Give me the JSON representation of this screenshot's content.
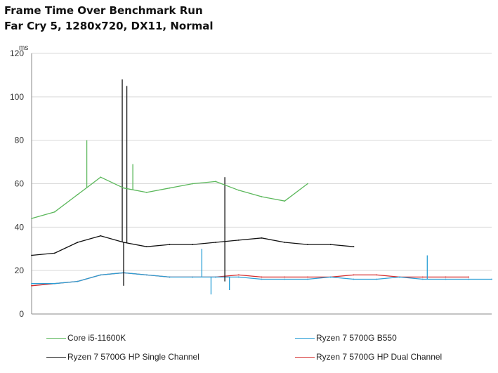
{
  "chart_data": {
    "type": "line",
    "title": "Frame Time Over Benchmark Run",
    "subtitle": "Far Cry 5, 1280x720, DX11, Normal",
    "xlabel": "",
    "ylabel": "ms",
    "ylim": [
      0,
      120
    ],
    "yticks": [
      0,
      20,
      40,
      60,
      80,
      100,
      120
    ],
    "grid": true,
    "legend_position": "bottom",
    "x": [
      0.0,
      0.05,
      0.1,
      0.15,
      0.2,
      0.25,
      0.3,
      0.35,
      0.4,
      0.45,
      0.5,
      0.55,
      0.6,
      0.65,
      0.7,
      0.75,
      0.8,
      0.85,
      0.9,
      0.95,
      1.0
    ],
    "series": [
      {
        "name": "Core i5-11600K",
        "color": "#5cb85c",
        "values": [
          44,
          47,
          55,
          63,
          58,
          56,
          58,
          60,
          61,
          57,
          54,
          52,
          60,
          null,
          null,
          null,
          null,
          null,
          null,
          null,
          null
        ],
        "spikes": [
          {
            "x": 0.12,
            "y": 80
          },
          {
            "x": 0.22,
            "y": 69
          }
        ]
      },
      {
        "name": "Ryzen 7 5700G B550",
        "color": "#2a9fd6",
        "values": [
          14,
          14,
          15,
          18,
          19,
          18,
          17,
          17,
          17,
          17,
          16,
          16,
          16,
          17,
          16,
          16,
          17,
          16,
          16,
          16,
          16
        ],
        "spikes": [
          {
            "x": 0.37,
            "y": 30
          },
          {
            "x": 0.39,
            "y": 9
          },
          {
            "x": 0.43,
            "y": 11
          },
          {
            "x": 0.86,
            "y": 27
          }
        ]
      },
      {
        "name": "Ryzen 7 5700G HP Single Channel",
        "color": "#111111",
        "values": [
          27,
          28,
          33,
          36,
          33,
          31,
          32,
          32,
          33,
          34,
          35,
          33,
          32,
          32,
          31,
          null,
          null,
          null,
          null,
          null,
          null
        ],
        "spikes": [
          {
            "x": 0.197,
            "y": 108
          },
          {
            "x": 0.207,
            "y": 105
          },
          {
            "x": 0.2,
            "y": 13
          },
          {
            "x": 0.42,
            "y": 63
          },
          {
            "x": 0.42,
            "y": 15
          }
        ]
      },
      {
        "name": "Ryzen 7 5700G HP Dual Channel",
        "color": "#d42a2a",
        "values": [
          13,
          14,
          15,
          18,
          19,
          18,
          17,
          17,
          17,
          18,
          17,
          17,
          17,
          17,
          18,
          18,
          17,
          17,
          17,
          17,
          null
        ],
        "spikes": []
      }
    ]
  }
}
